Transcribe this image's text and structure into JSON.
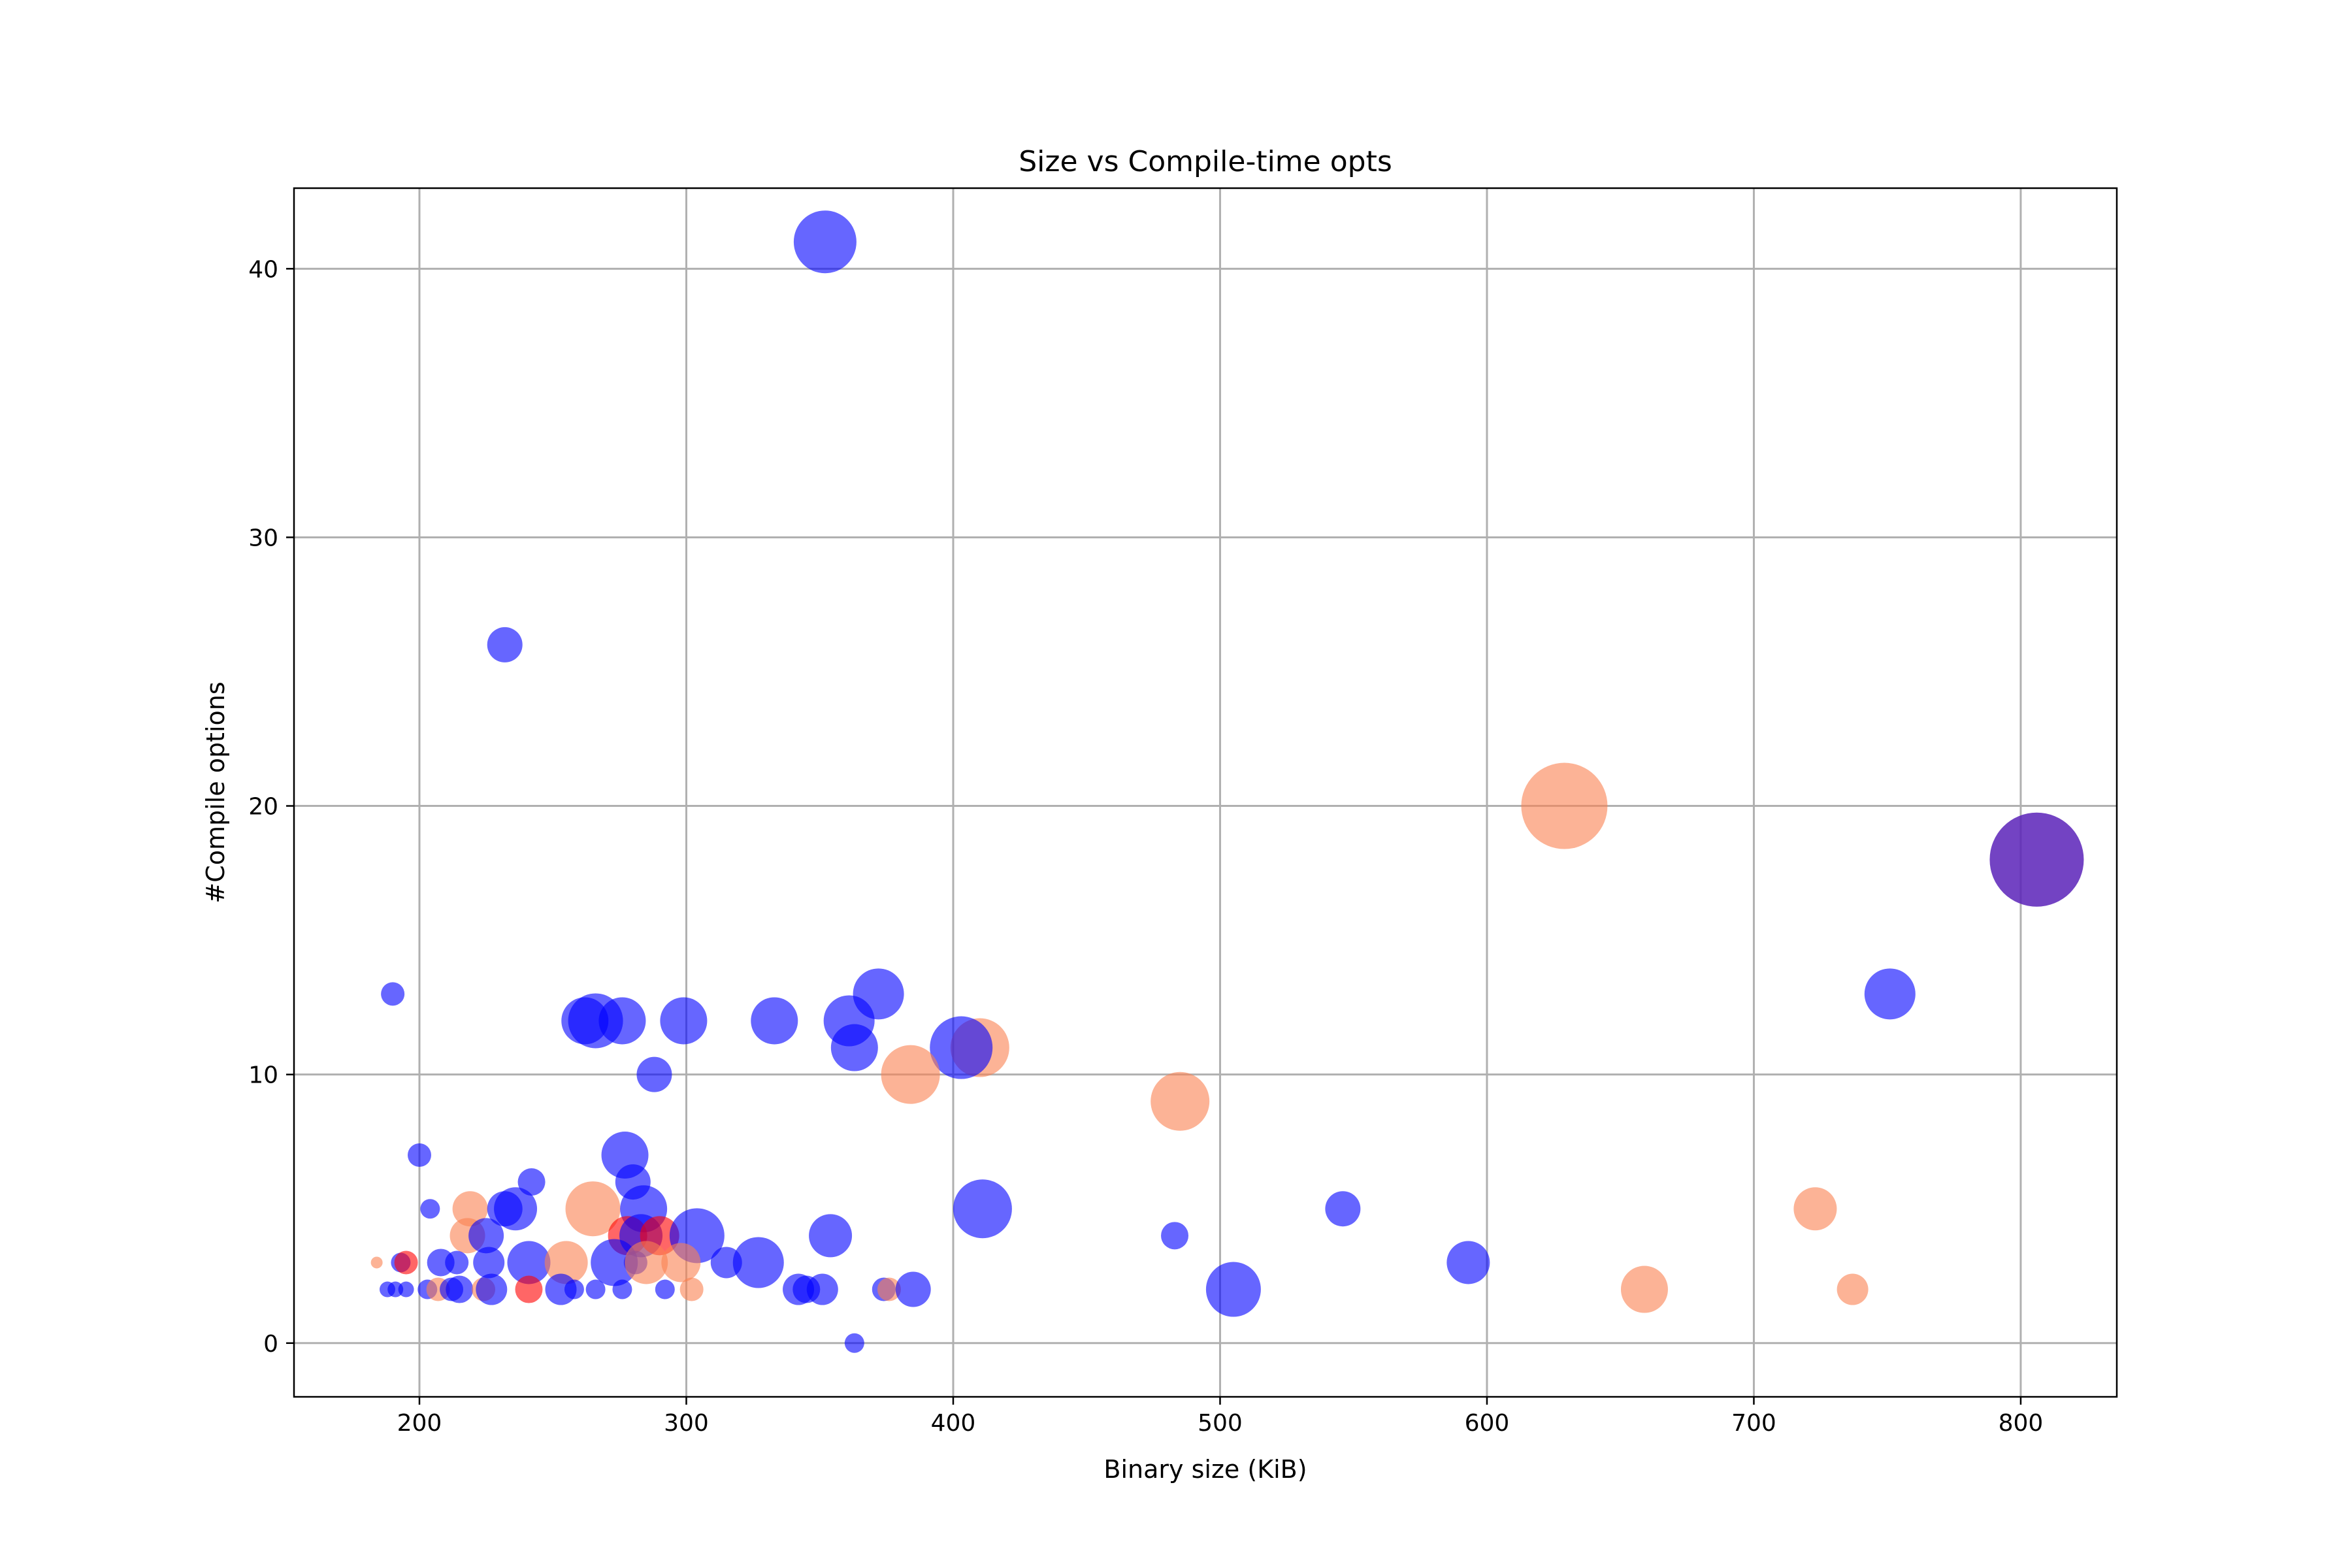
{
  "chart_data": {
    "type": "scatter",
    "title": "Size vs Compile-time opts",
    "xlabel": "Binary size (KiB)",
    "ylabel": "#Compile options",
    "xlim": [
      153,
      836
    ],
    "ylim": [
      -2,
      43
    ],
    "xticks": [
      200,
      300,
      400,
      500,
      600,
      700,
      800
    ],
    "yticks": [
      0,
      10,
      20,
      30,
      40
    ],
    "grid": true,
    "colors": {
      "blue": "#0000ff",
      "orange": "#fa8050",
      "red": "#ff0000",
      "purple": "#5a22b8"
    },
    "points": [
      {
        "x": 352,
        "y": 41,
        "s": 16,
        "c": "blue"
      },
      {
        "x": 232,
        "y": 26,
        "s": 9,
        "c": "blue"
      },
      {
        "x": 629,
        "y": 20,
        "s": 22,
        "c": "orange"
      },
      {
        "x": 806,
        "y": 18,
        "s": 24,
        "c": "purple"
      },
      {
        "x": 190,
        "y": 13,
        "s": 6,
        "c": "blue"
      },
      {
        "x": 372,
        "y": 13,
        "s": 13,
        "c": "blue"
      },
      {
        "x": 751,
        "y": 13,
        "s": 13,
        "c": "blue"
      },
      {
        "x": 262,
        "y": 12,
        "s": 12,
        "c": "blue"
      },
      {
        "x": 266,
        "y": 12,
        "s": 14,
        "c": "blue"
      },
      {
        "x": 276,
        "y": 12,
        "s": 12,
        "c": "blue"
      },
      {
        "x": 299,
        "y": 12,
        "s": 12,
        "c": "blue"
      },
      {
        "x": 333,
        "y": 12,
        "s": 12,
        "c": "blue"
      },
      {
        "x": 361,
        "y": 12,
        "s": 13,
        "c": "blue"
      },
      {
        "x": 363,
        "y": 11,
        "s": 12,
        "c": "blue"
      },
      {
        "x": 410,
        "y": 11,
        "s": 15,
        "c": "orange"
      },
      {
        "x": 403,
        "y": 11,
        "s": 16,
        "c": "blue"
      },
      {
        "x": 288,
        "y": 10,
        "s": 9,
        "c": "blue"
      },
      {
        "x": 384,
        "y": 10,
        "s": 15,
        "c": "orange"
      },
      {
        "x": 485,
        "y": 9,
        "s": 15,
        "c": "orange"
      },
      {
        "x": 200,
        "y": 7,
        "s": 6,
        "c": "blue"
      },
      {
        "x": 277,
        "y": 7,
        "s": 12,
        "c": "blue"
      },
      {
        "x": 242,
        "y": 6,
        "s": 7,
        "c": "blue"
      },
      {
        "x": 280,
        "y": 6,
        "s": 9,
        "c": "blue"
      },
      {
        "x": 204,
        "y": 5,
        "s": 5,
        "c": "blue"
      },
      {
        "x": 219,
        "y": 5,
        "s": 9,
        "c": "orange"
      },
      {
        "x": 232,
        "y": 5,
        "s": 9,
        "c": "blue"
      },
      {
        "x": 236,
        "y": 5,
        "s": 11,
        "c": "blue"
      },
      {
        "x": 265,
        "y": 5,
        "s": 14,
        "c": "orange"
      },
      {
        "x": 284,
        "y": 5,
        "s": 12,
        "c": "blue"
      },
      {
        "x": 411,
        "y": 5,
        "s": 15,
        "c": "blue"
      },
      {
        "x": 546,
        "y": 5,
        "s": 9,
        "c": "blue"
      },
      {
        "x": 723,
        "y": 5,
        "s": 11,
        "c": "orange"
      },
      {
        "x": 218,
        "y": 4,
        "s": 9,
        "c": "orange"
      },
      {
        "x": 225,
        "y": 4,
        "s": 9,
        "c": "blue"
      },
      {
        "x": 278,
        "y": 4,
        "s": 10,
        "c": "red"
      },
      {
        "x": 283,
        "y": 4,
        "s": 11,
        "c": "blue"
      },
      {
        "x": 290,
        "y": 4,
        "s": 10,
        "c": "red"
      },
      {
        "x": 304,
        "y": 4,
        "s": 14,
        "c": "blue"
      },
      {
        "x": 354,
        "y": 4,
        "s": 11,
        "c": "blue"
      },
      {
        "x": 483,
        "y": 4,
        "s": 7,
        "c": "blue"
      },
      {
        "x": 184,
        "y": 3,
        "s": 3,
        "c": "orange"
      },
      {
        "x": 193,
        "y": 3,
        "s": 5,
        "c": "blue"
      },
      {
        "x": 195,
        "y": 3,
        "s": 6,
        "c": "red"
      },
      {
        "x": 208,
        "y": 3,
        "s": 7,
        "c": "blue"
      },
      {
        "x": 214,
        "y": 3,
        "s": 6,
        "c": "blue"
      },
      {
        "x": 226,
        "y": 3,
        "s": 8,
        "c": "blue"
      },
      {
        "x": 241,
        "y": 3,
        "s": 11,
        "c": "blue"
      },
      {
        "x": 255,
        "y": 3,
        "s": 11,
        "c": "orange"
      },
      {
        "x": 273,
        "y": 3,
        "s": 12,
        "c": "blue"
      },
      {
        "x": 281,
        "y": 3,
        "s": 6,
        "c": "blue"
      },
      {
        "x": 285,
        "y": 3,
        "s": 11,
        "c": "orange"
      },
      {
        "x": 298,
        "y": 3,
        "s": 10,
        "c": "orange"
      },
      {
        "x": 315,
        "y": 3,
        "s": 8,
        "c": "blue"
      },
      {
        "x": 327,
        "y": 3,
        "s": 13,
        "c": "blue"
      },
      {
        "x": 593,
        "y": 3,
        "s": 11,
        "c": "blue"
      },
      {
        "x": 188,
        "y": 2,
        "s": 4,
        "c": "blue"
      },
      {
        "x": 191,
        "y": 2,
        "s": 4,
        "c": "blue"
      },
      {
        "x": 195,
        "y": 2,
        "s": 4,
        "c": "blue"
      },
      {
        "x": 203,
        "y": 2,
        "s": 5,
        "c": "blue"
      },
      {
        "x": 207,
        "y": 2,
        "s": 6,
        "c": "orange"
      },
      {
        "x": 212,
        "y": 2,
        "s": 6,
        "c": "blue"
      },
      {
        "x": 215,
        "y": 2,
        "s": 7,
        "c": "blue"
      },
      {
        "x": 224,
        "y": 2,
        "s": 6,
        "c": "orange"
      },
      {
        "x": 227,
        "y": 2,
        "s": 8,
        "c": "blue"
      },
      {
        "x": 241,
        "y": 2,
        "s": 7,
        "c": "red"
      },
      {
        "x": 253,
        "y": 2,
        "s": 8,
        "c": "blue"
      },
      {
        "x": 258,
        "y": 2,
        "s": 5,
        "c": "blue"
      },
      {
        "x": 266,
        "y": 2,
        "s": 5,
        "c": "blue"
      },
      {
        "x": 276,
        "y": 2,
        "s": 5,
        "c": "blue"
      },
      {
        "x": 292,
        "y": 2,
        "s": 5,
        "c": "blue"
      },
      {
        "x": 302,
        "y": 2,
        "s": 6,
        "c": "orange"
      },
      {
        "x": 342,
        "y": 2,
        "s": 8,
        "c": "blue"
      },
      {
        "x": 345,
        "y": 2,
        "s": 7,
        "c": "blue"
      },
      {
        "x": 351,
        "y": 2,
        "s": 8,
        "c": "blue"
      },
      {
        "x": 374,
        "y": 2,
        "s": 6,
        "c": "blue"
      },
      {
        "x": 376,
        "y": 2,
        "s": 6,
        "c": "orange"
      },
      {
        "x": 385,
        "y": 2,
        "s": 9,
        "c": "blue"
      },
      {
        "x": 505,
        "y": 2,
        "s": 14,
        "c": "blue"
      },
      {
        "x": 659,
        "y": 2,
        "s": 12,
        "c": "orange"
      },
      {
        "x": 737,
        "y": 2,
        "s": 8,
        "c": "orange"
      },
      {
        "x": 363,
        "y": 0,
        "s": 5,
        "c": "blue"
      }
    ]
  }
}
